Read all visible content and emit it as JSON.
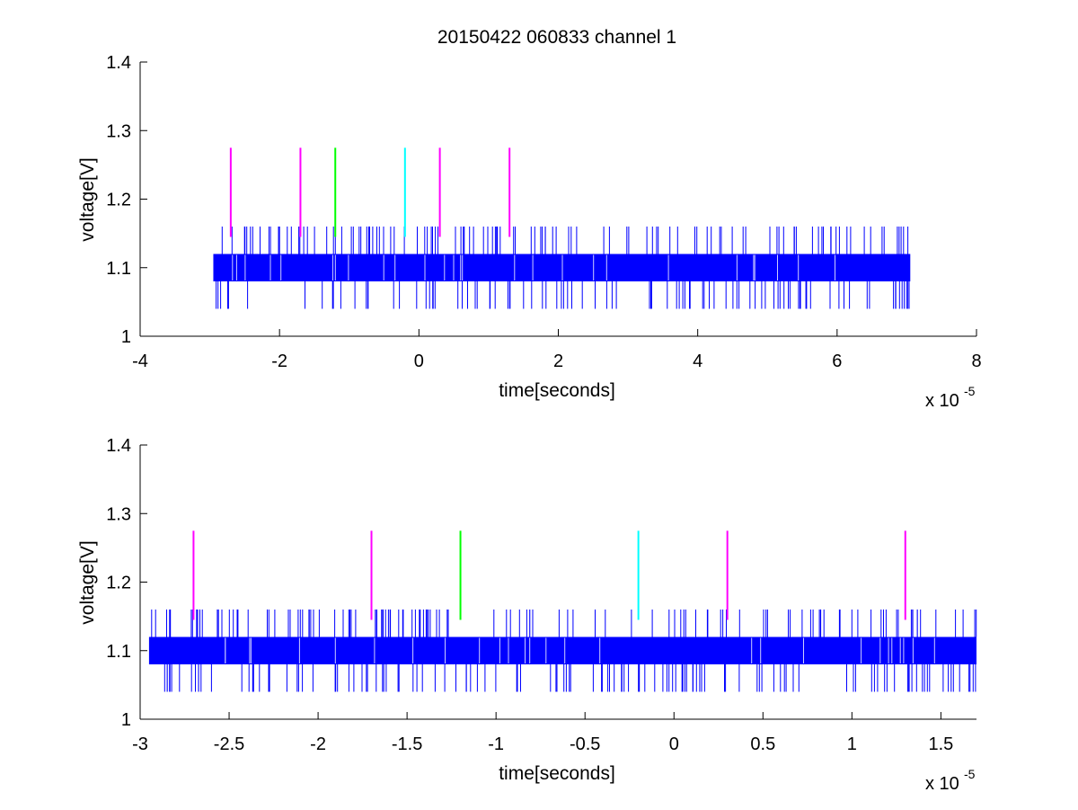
{
  "chart_data": [
    {
      "type": "line",
      "title": "20150422 060833 channel 1",
      "xlabel": "time[seconds]",
      "ylabel": "voltage[V]",
      "xlim": [
        -4,
        8
      ],
      "ylim": [
        1,
        1.4
      ],
      "x_scale_factor": "x 10",
      "x_scale_exponent": "-5",
      "xticks": [
        -4,
        -2,
        0,
        2,
        4,
        6,
        8
      ],
      "xtick_labels": [
        "-4",
        "-2",
        "0",
        "2",
        "4",
        "6",
        "8"
      ],
      "yticks": [
        1,
        1.1,
        1.2,
        1.3,
        1.4
      ],
      "ytick_labels": [
        "1",
        "1.1",
        "1.2",
        "1.3",
        "1.4"
      ],
      "grid": false,
      "series": [
        {
          "color": "#0000ff",
          "x_range": [
            -2.95,
            7.05
          ],
          "band": [
            1.08,
            1.12
          ],
          "spike_high": 1.16,
          "spike_low": 1.04
        }
      ],
      "markers": [
        {
          "x": -2.7,
          "color": "#ff00ff",
          "y_range": [
            1.145,
            1.275
          ]
        },
        {
          "x": -1.7,
          "color": "#ff00ff",
          "y_range": [
            1.145,
            1.275
          ]
        },
        {
          "x": -1.2,
          "color": "#00ff00",
          "y_range": [
            1.145,
            1.275
          ]
        },
        {
          "x": -0.2,
          "color": "#00ffff",
          "y_range": [
            1.145,
            1.275
          ]
        },
        {
          "x": 0.3,
          "color": "#ff00ff",
          "y_range": [
            1.145,
            1.275
          ]
        },
        {
          "x": 1.3,
          "color": "#ff00ff",
          "y_range": [
            1.145,
            1.275
          ]
        }
      ]
    },
    {
      "type": "line",
      "title": "",
      "xlabel": "time[seconds]",
      "ylabel": "voltage[V]",
      "xlim": [
        -3,
        1.7
      ],
      "ylim": [
        1,
        1.4
      ],
      "x_scale_factor": "x 10",
      "x_scale_exponent": "-5",
      "xticks": [
        -3,
        -2.5,
        -2,
        -1.5,
        -1,
        -0.5,
        0,
        0.5,
        1,
        1.5
      ],
      "xtick_labels": [
        "-3",
        "-2.5",
        "-2",
        "-1.5",
        "-1",
        "-0.5",
        "0",
        "0.5",
        "1",
        "1.5"
      ],
      "yticks": [
        1,
        1.1,
        1.2,
        1.3,
        1.4
      ],
      "ytick_labels": [
        "1",
        "1.1",
        "1.2",
        "1.3",
        "1.4"
      ],
      "grid": false,
      "series": [
        {
          "color": "#0000ff",
          "x_range": [
            -2.95,
            1.7
          ],
          "band": [
            1.08,
            1.12
          ],
          "spike_high": 1.16,
          "spike_low": 1.04
        }
      ],
      "markers": [
        {
          "x": -2.7,
          "color": "#ff00ff",
          "y_range": [
            1.145,
            1.275
          ]
        },
        {
          "x": -1.7,
          "color": "#ff00ff",
          "y_range": [
            1.145,
            1.275
          ]
        },
        {
          "x": -1.2,
          "color": "#00ff00",
          "y_range": [
            1.145,
            1.275
          ]
        },
        {
          "x": -0.2,
          "color": "#00ffff",
          "y_range": [
            1.145,
            1.275
          ]
        },
        {
          "x": 0.3,
          "color": "#ff00ff",
          "y_range": [
            1.145,
            1.275
          ]
        },
        {
          "x": 1.3,
          "color": "#ff00ff",
          "y_range": [
            1.145,
            1.275
          ]
        }
      ]
    }
  ]
}
